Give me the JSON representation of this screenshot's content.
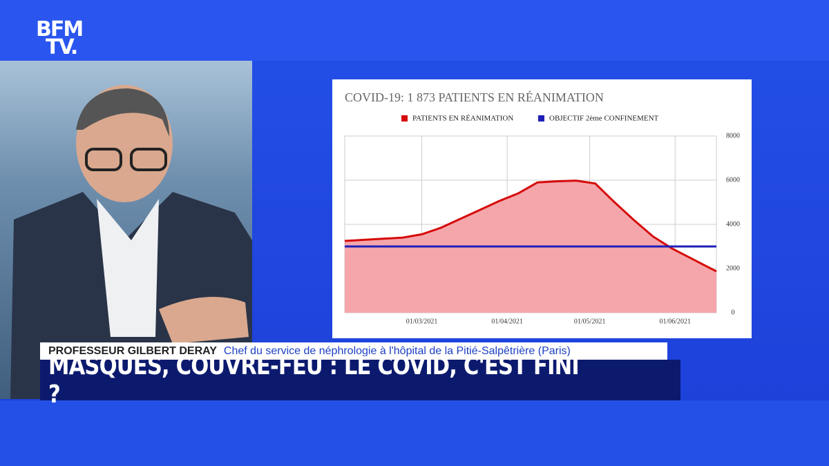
{
  "logo": {
    "line1": "BFM",
    "line2": "TV."
  },
  "lower_third": {
    "name": "PROFESSEUR GILBERT DERAY",
    "role": "Chef du service de néphrologie à l'hôpital de la Pitié-Salpêtrière (Paris)",
    "headline": "MASQUES, COUVRE-FEU : LE COVID, C'EST FINI ?"
  },
  "chart_data": {
    "type": "area",
    "title": "COVID-19: 1 873 PATIENTS EN RÉANIMATION",
    "series": [
      {
        "name": "PATIENTS EN RÉANIMATION",
        "color": "#d60a0a",
        "fill": "#f4a6ab",
        "x": [
          "01/02/2021",
          "08/02/2021",
          "15/02/2021",
          "22/02/2021",
          "01/03/2021",
          "08/03/2021",
          "15/03/2021",
          "22/03/2021",
          "29/03/2021",
          "05/04/2021",
          "12/04/2021",
          "19/04/2021",
          "26/04/2021",
          "03/05/2021",
          "10/05/2021",
          "17/05/2021",
          "24/05/2021",
          "31/05/2021",
          "07/06/2021",
          "16/06/2021"
        ],
        "values": [
          3250,
          3300,
          3350,
          3400,
          3550,
          3850,
          4250,
          4650,
          5050,
          5400,
          5900,
          5950,
          5980,
          5850,
          5000,
          4200,
          3450,
          2900,
          2450,
          1873
        ]
      },
      {
        "name": "OBJECTIF 2ème CONFINEMENT",
        "color": "#1f1fb8",
        "x": [
          "01/02/2021",
          "16/06/2021"
        ],
        "values": [
          3000,
          3000
        ]
      }
    ],
    "xlim": [
      "01/02/2021",
      "16/06/2021"
    ],
    "xticks": [
      "01/03/2021",
      "01/04/2021",
      "01/05/2021",
      "01/06/2021"
    ],
    "ylim": [
      0,
      8000
    ],
    "yticks": [
      0,
      2000,
      4000,
      6000,
      8000
    ],
    "grid": true,
    "y_axis_side": "right"
  }
}
